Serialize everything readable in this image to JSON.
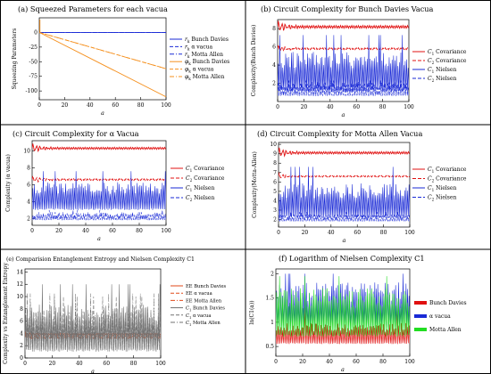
{
  "figure": {
    "line_color": "#000000"
  },
  "chart_data": [
    {
      "id": "a",
      "type": "line",
      "title": "(a) Squeezed Parameters for each vacua",
      "xlabel": "a",
      "ylabel": "Squeezing Parameters",
      "xlim": [
        0,
        100
      ],
      "ylim": [
        -115,
        25
      ],
      "xticks": [
        0,
        20,
        40,
        60,
        80,
        100
      ],
      "yticks": [
        -100,
        -75,
        -50,
        -25,
        0
      ],
      "series": [
        {
          "name": "r_k Bunch Davies",
          "color": "#1a2ad6",
          "style": "solid",
          "kind": "linear",
          "x": [
            0,
            100
          ],
          "values": [
            0,
            0
          ]
        },
        {
          "name": "r_k α vacua",
          "color": "#1a2ad6",
          "style": "dashed",
          "kind": "linear",
          "x": [
            0,
            100
          ],
          "values": [
            0,
            0
          ]
        },
        {
          "name": "r_k Motta Allen",
          "color": "#1a2ad6",
          "style": "dashdot",
          "kind": "linear",
          "x": [
            0,
            100
          ],
          "values": [
            0,
            0
          ]
        },
        {
          "name": "φ_k Bunch Davies",
          "color": "#f5901e",
          "style": "solid",
          "kind": "linear",
          "x": [
            0,
            100
          ],
          "values": [
            0,
            -110
          ]
        },
        {
          "name": "φ_k α vacua",
          "color": "#f5901e",
          "style": "dashed",
          "kind": "linear",
          "x": [
            0,
            100
          ],
          "values": [
            0,
            -62
          ]
        },
        {
          "name": "φ_k Motta Allen",
          "color": "#f5901e",
          "style": "dashdot",
          "kind": "linear",
          "x": [
            0,
            100
          ],
          "values": [
            0,
            -62
          ]
        }
      ],
      "spike": {
        "x": 0.5,
        "y_from": 0,
        "y_to": 22,
        "color": "#f5901e"
      },
      "legend": [
        {
          "label": "r_k Bunch Davies",
          "color": "#1a2ad6",
          "style": "solid"
        },
        {
          "label": "r_k α vacua",
          "color": "#1a2ad6",
          "style": "dashed"
        },
        {
          "label": "r_k Motta Allen",
          "color": "#1a2ad6",
          "style": "dashdot"
        },
        {
          "label": "φ_k Bunch Davies",
          "color": "#f5901e",
          "style": "solid"
        },
        {
          "label": "φ_k α vacua",
          "color": "#f5901e",
          "style": "dashed"
        },
        {
          "label": "φ_k Motta Allen",
          "color": "#f5901e",
          "style": "dashdot"
        }
      ],
      "legend_placement": "right"
    },
    {
      "id": "b",
      "type": "line",
      "title": "(b) Circuit Complexity for Bunch Davies Vacua",
      "xlabel": "a",
      "ylabel": "Complexity(Bunch Davies)",
      "xlim": [
        0,
        100
      ],
      "ylim": [
        0,
        9
      ],
      "xticks": [
        0,
        20,
        40,
        60,
        80,
        100
      ],
      "yticks": [
        2,
        4,
        6,
        8
      ],
      "series": [
        {
          "name": "C1 Covariance",
          "color": "#e01010",
          "style": "solid",
          "kind": "damped",
          "base": 8.2,
          "amp": 0.6
        },
        {
          "name": "C2 Covariance",
          "color": "#e01010",
          "style": "dashed",
          "kind": "damped",
          "base": 5.8,
          "amp": 0.4
        },
        {
          "name": "C1 Nielsen",
          "color": "#1a2ad6",
          "style": "solid",
          "kind": "osc",
          "low": 1.1,
          "high": 5.7,
          "peak_max": 7.3
        },
        {
          "name": "C2 Nielsen",
          "color": "#1a2ad6",
          "style": "dashed",
          "kind": "osc",
          "low": 0.6,
          "high": 2.2,
          "peak_max": 2.3
        }
      ],
      "legend": [
        {
          "label": "C1 Covariance",
          "color": "#e01010",
          "style": "solid"
        },
        {
          "label": "C2 Covariance",
          "color": "#e01010",
          "style": "dashed"
        },
        {
          "label": "C1 Nielsen",
          "color": "#1a2ad6",
          "style": "solid"
        },
        {
          "label": "C2 Nielsen",
          "color": "#1a2ad6",
          "style": "dashed"
        }
      ],
      "legend_placement": "right"
    },
    {
      "id": "c",
      "type": "line",
      "title": "(c) Circuit Complexity for α Vacua",
      "xlabel": "a",
      "ylabel": "Complexity (α vacua)",
      "xlim": [
        0,
        100
      ],
      "ylim": [
        1.2,
        11.2
      ],
      "xticks": [
        0,
        20,
        40,
        60,
        80,
        100
      ],
      "yticks": [
        2,
        4,
        6,
        8,
        10
      ],
      "series": [
        {
          "name": "C1 Covariance",
          "color": "#e01010",
          "style": "solid",
          "kind": "damped",
          "base": 10.3,
          "amp": 0.5
        },
        {
          "name": "C2 Covariance",
          "color": "#e01010",
          "style": "dashed",
          "kind": "damped",
          "base": 6.6,
          "amp": 0.4
        },
        {
          "name": "C1 Nielsen",
          "color": "#1a2ad6",
          "style": "solid",
          "kind": "osc",
          "low": 3.0,
          "high": 6.4,
          "peak_max": 7.6
        },
        {
          "name": "C2 Nielsen",
          "color": "#1a2ad6",
          "style": "dashed",
          "kind": "osc",
          "low": 1.8,
          "high": 2.8,
          "peak_max": 3.0
        }
      ],
      "legend": [
        {
          "label": "C1 Covariance",
          "color": "#e01010",
          "style": "solid"
        },
        {
          "label": "C2 Covariance",
          "color": "#e01010",
          "style": "dashed"
        },
        {
          "label": "C1 Nielsen",
          "color": "#1a2ad6",
          "style": "solid"
        },
        {
          "label": "C2 Nielsen",
          "color": "#1a2ad6",
          "style": "dashed"
        }
      ],
      "legend_placement": "right"
    },
    {
      "id": "d",
      "type": "line",
      "title": "(d) Circuit Complexity for Motta Allen Vacua",
      "xlabel": "a",
      "ylabel": "Complexity(Motta-Allen)",
      "xlim": [
        0,
        100
      ],
      "ylim": [
        1.2,
        10.2
      ],
      "xticks": [
        0,
        20,
        40,
        60,
        80,
        100
      ],
      "yticks": [
        2,
        3,
        4,
        5,
        6,
        7,
        8,
        9,
        10
      ],
      "series": [
        {
          "name": "C1 Covariance",
          "color": "#e01010",
          "style": "solid",
          "kind": "damped",
          "base": 9.1,
          "amp": 0.5
        },
        {
          "name": "C2 Covariance",
          "color": "#e01010",
          "style": "dashed",
          "kind": "damped",
          "base": 6.6,
          "amp": 0.3
        },
        {
          "name": "C1 Nielsen",
          "color": "#1a2ad6",
          "style": "solid",
          "kind": "osc",
          "low": 2.2,
          "high": 6.0,
          "peak_max": 7.6
        },
        {
          "name": "C2 Nielsen",
          "color": "#1a2ad6",
          "style": "dashed",
          "kind": "osc",
          "low": 1.8,
          "high": 2.6,
          "peak_max": 2.8
        }
      ],
      "legend": [
        {
          "label": "C1 Covariance",
          "color": "#e01010",
          "style": "solid"
        },
        {
          "label": "C2 Covariance",
          "color": "#e01010",
          "style": "dashed"
        },
        {
          "label": "C1 Nielsen",
          "color": "#1a2ad6",
          "style": "solid"
        },
        {
          "label": "C2 Nielsen",
          "color": "#1a2ad6",
          "style": "dashed"
        }
      ],
      "legend_placement": "right"
    },
    {
      "id": "e",
      "type": "line",
      "title": "(e) Comparision Entanglement Entropy and Nielsen Complexity C1",
      "xlabel": "a",
      "ylabel": "Complexity vs Entanglement Entropy",
      "xlim": [
        0,
        100
      ],
      "ylim": [
        0,
        14.5
      ],
      "xticks": [
        0,
        20,
        40,
        60,
        80,
        100
      ],
      "yticks": [
        0,
        2,
        4,
        6,
        8,
        10,
        12,
        14
      ],
      "series": [
        {
          "name": "EE Bunch Davies",
          "color": "#e04a1a",
          "style": "solid",
          "kind": "damped",
          "base": 3.9,
          "amp": 0.3
        },
        {
          "name": "EE α vacua",
          "color": "#e04a1a",
          "style": "dashed",
          "kind": "damped",
          "base": 3.6,
          "amp": 0.3
        },
        {
          "name": "EE Motta Allen",
          "color": "#e04a1a",
          "style": "dashdot",
          "kind": "damped",
          "base": 3.3,
          "amp": 0.3
        },
        {
          "name": "C1 Bunch Davies",
          "color": "#707070",
          "style": "solid",
          "kind": "osc",
          "low": 1.0,
          "high": 9.0,
          "peak_max": 12.0
        },
        {
          "name": "C1 α vacua",
          "color": "#707070",
          "style": "dashed",
          "kind": "osc",
          "low": 1.5,
          "high": 8.0,
          "peak_max": 10.0
        },
        {
          "name": "C1 Motta Allen",
          "color": "#707070",
          "style": "dashdot",
          "kind": "osc",
          "low": 1.2,
          "high": 8.5,
          "peak_max": 10.5
        }
      ],
      "legend": [
        {
          "label": "EE Bunch Davies",
          "color": "#e04a1a",
          "style": "solid"
        },
        {
          "label": "EE α vacua",
          "color": "#e04a1a",
          "style": "dashed"
        },
        {
          "label": "EE Motta Allen",
          "color": "#e04a1a",
          "style": "dashdot"
        },
        {
          "label": "C1 Bunch Davies",
          "color": "#707070",
          "style": "solid"
        },
        {
          "label": "C1 α vacua",
          "color": "#707070",
          "style": "dashed"
        },
        {
          "label": "C1 Motta Allen",
          "color": "#707070",
          "style": "dashdot"
        }
      ],
      "legend_placement": "right"
    },
    {
      "id": "f",
      "type": "line",
      "title": "(f) Logarithm of Nielsen Complexity C1",
      "xlabel": "a",
      "ylabel": "ln(C1(a))",
      "xlim": [
        0,
        100
      ],
      "ylim": [
        0.3,
        2.1
      ],
      "xticks": [
        0,
        20,
        40,
        60,
        80,
        100
      ],
      "yticks": [
        0.5,
        1.0,
        1.5,
        2.0
      ],
      "series": [
        {
          "name": "Bunch Davies",
          "color": "#e01010",
          "style": "solid",
          "kind": "osc",
          "low": 0.55,
          "high": 1.0,
          "peak_max": 1.3
        },
        {
          "name": "α vacua",
          "color": "#1a2ad6",
          "style": "solid",
          "kind": "osc",
          "low": 0.9,
          "high": 1.85,
          "peak_max": 2.0
        },
        {
          "name": "Motta Allen",
          "color": "#22dd22",
          "style": "solid",
          "kind": "osc",
          "low": 0.7,
          "high": 1.75,
          "peak_max": 1.95
        }
      ],
      "legend": [
        {
          "label": "Bunch Davies",
          "color": "#e01010",
          "style": "solid"
        },
        {
          "label": "α vacua",
          "color": "#1a2ad6",
          "style": "solid"
        },
        {
          "label": "Motta Allen",
          "color": "#22dd22",
          "style": "solid"
        }
      ],
      "legend_placement": "bottom-right"
    }
  ]
}
